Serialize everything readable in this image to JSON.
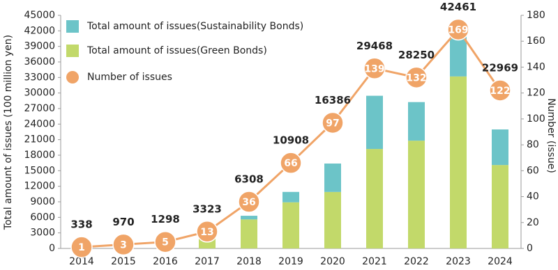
{
  "chart_data": {
    "type": "bar-line",
    "y_label": "Total amount of issues (100 million yen)",
    "y2_label": "Number (issue)",
    "categories": [
      "2014",
      "2015",
      "2016",
      "2017",
      "2018",
      "2019",
      "2020",
      "2021",
      "2022",
      "2023",
      "2024"
    ],
    "series": [
      {
        "name": "Total amount of issues(Green Bonds)",
        "color": "#c2d96a",
        "values": [
          338,
          970,
          1298,
          3323,
          5600,
          8900,
          10900,
          19200,
          20800,
          33200,
          16100
        ]
      },
      {
        "name": "Total amount of issues(Sustainability Bonds)",
        "color": "#6cc4c8",
        "values": [
          0,
          0,
          0,
          0,
          708,
          2008,
          5486,
          10268,
          7450,
          9261,
          6869
        ]
      },
      {
        "name": "Number of issues",
        "color": "#f0a467",
        "axis": "y2",
        "values": [
          1,
          3,
          5,
          13,
          36,
          66,
          97,
          139,
          132,
          169,
          122
        ]
      }
    ],
    "totals": [
      338,
      970,
      1298,
      3323,
      6308,
      10908,
      16386,
      29468,
      28250,
      42461,
      22969
    ],
    "ylim": [
      0,
      45000
    ],
    "yticks": [
      0,
      3000,
      6000,
      9000,
      12000,
      15000,
      18000,
      21000,
      24000,
      27000,
      30000,
      33000,
      36000,
      39000,
      42000,
      45000
    ],
    "y2lim": [
      0,
      180
    ],
    "y2ticks": [
      0,
      20,
      40,
      60,
      80,
      100,
      120,
      140,
      160,
      180
    ]
  }
}
